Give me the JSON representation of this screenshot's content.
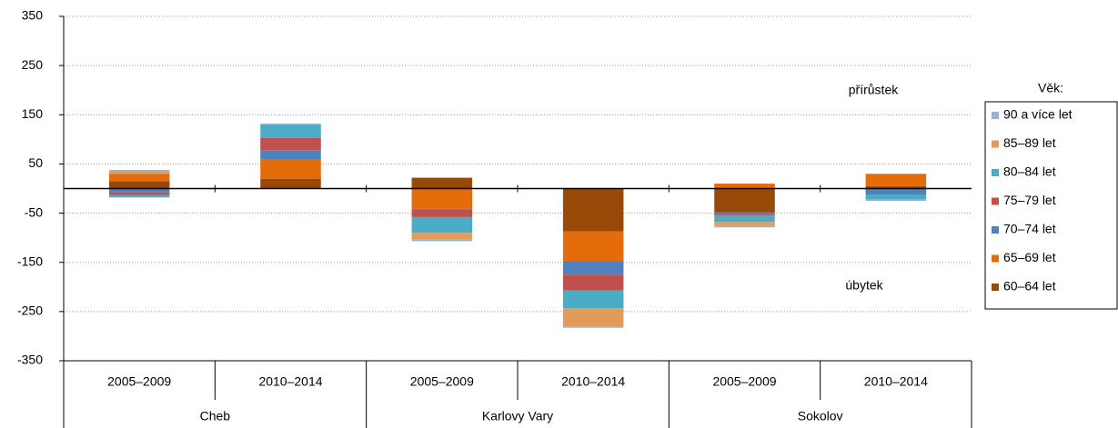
{
  "chart_data": {
    "type": "stacked_bar",
    "categories": [
      "2005–2009",
      "2010–2014",
      "2005–2009",
      "2010–2014",
      "2005–2009",
      "2010–2014"
    ],
    "groups": [
      {
        "name": "Cheb",
        "span": 2
      },
      {
        "name": "Karlovy Vary",
        "span": 2
      },
      {
        "name": "Sokolov",
        "span": 2
      }
    ],
    "series": [
      {
        "name": "60–64 let",
        "color": "#984807",
        "values": [
          15,
          20,
          22,
          -87,
          -48,
          5
        ]
      },
      {
        "name": "65–69 let",
        "color": "#e46c0a",
        "values": [
          15,
          40,
          -40,
          -60,
          10,
          25
        ]
      },
      {
        "name": "70–74 let",
        "color": "#4f81bd",
        "values": [
          -8,
          18,
          -2,
          -28,
          -4,
          -12
        ]
      },
      {
        "name": "75–79 let",
        "color": "#c0504d",
        "values": [
          -5,
          25,
          -16,
          -32,
          -3,
          0
        ]
      },
      {
        "name": "80–84 let",
        "color": "#4bacc6",
        "values": [
          -5,
          27,
          -32,
          -36,
          -13,
          -10
        ]
      },
      {
        "name": "85–89 let",
        "color": "#e39b5b",
        "values": [
          5,
          0,
          -13,
          -37,
          -8,
          0
        ]
      },
      {
        "name": "90 a více let",
        "color": "#95b3d7",
        "values": [
          3,
          2,
          -4,
          -3,
          -3,
          -3
        ]
      }
    ],
    "legend_title": "Věk:",
    "annotations": [
      "přírůstek",
      "úbytek"
    ],
    "ylim": [
      -350,
      350
    ],
    "yticks": [
      350,
      250,
      150,
      50,
      -50,
      -150,
      -250,
      -350
    ],
    "grid": true
  }
}
